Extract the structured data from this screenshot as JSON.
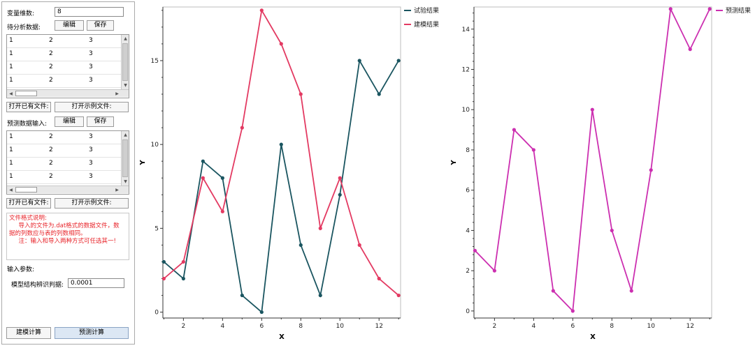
{
  "form": {
    "var_dim_label": "变量维数:",
    "var_dim_value": "8",
    "analysis_label": "待分析数据:",
    "edit_label": "编辑",
    "save_label": "保存",
    "open_file_label": "打开已有文件:",
    "open_example_label": "打开示例文件:",
    "predict_input_label": "预测数据输入:",
    "input_params_label": "输入参数:",
    "criterion_label": "模型结构辨识判据:",
    "criterion_value": "0.0001",
    "build_button": "建模计算",
    "predict_button": "预测计算",
    "note_lines": [
      "文件格式说明:",
      "     导入的文件为.dat格式的数据文件，数",
      "据的列数应与表的列数相同。",
      "     注：输入和导入两种方式可任选其一!"
    ]
  },
  "tables": {
    "analysis_rows": [
      [
        "1",
        "2",
        "3"
      ],
      [
        "1",
        "2",
        "3"
      ],
      [
        "1",
        "2",
        "3"
      ],
      [
        "1",
        "2",
        "3"
      ]
    ],
    "predict_rows": [
      [
        "1",
        "2",
        "3"
      ],
      [
        "1",
        "2",
        "3"
      ],
      [
        "1",
        "2",
        "3"
      ],
      [
        "1",
        "2",
        "3"
      ]
    ]
  },
  "chart_data": [
    {
      "type": "line",
      "xlabel": "X",
      "ylabel": "Y",
      "xlim": [
        0.95,
        13.1
      ],
      "ylim": [
        -0.35,
        18.2
      ],
      "xticks": [
        2,
        4,
        6,
        8,
        10,
        12
      ],
      "yticks": [
        0,
        5,
        10,
        15
      ],
      "x": [
        1,
        2,
        3,
        4,
        5,
        6,
        7,
        8,
        9,
        10,
        11,
        12,
        13
      ],
      "series": [
        {
          "name": "试验结果",
          "color": "#1a5560",
          "values": [
            3,
            2,
            9,
            8,
            1,
            0,
            10,
            4,
            1,
            7,
            15,
            13,
            15
          ]
        },
        {
          "name": "建模结果",
          "color": "#e33a62",
          "values": [
            2,
            3,
            8,
            6,
            11,
            18,
            16,
            13,
            5,
            8,
            4,
            2,
            1
          ]
        }
      ]
    },
    {
      "type": "line",
      "xlabel": "X",
      "ylabel": "Y",
      "xlim": [
        0.95,
        13.1
      ],
      "ylim": [
        -0.35,
        15.1
      ],
      "xticks": [
        2,
        4,
        6,
        8,
        10,
        12
      ],
      "yticks": [
        0,
        2,
        4,
        6,
        8,
        10,
        12,
        14
      ],
      "x": [
        1,
        2,
        3,
        4,
        5,
        6,
        7,
        8,
        9,
        10,
        11,
        12,
        13
      ],
      "series": [
        {
          "name": "预测结果",
          "color": "#cc2fb0",
          "values": [
            3,
            2,
            9,
            8,
            1,
            0,
            10,
            4,
            1,
            7,
            15,
            13,
            15
          ]
        }
      ]
    }
  ]
}
